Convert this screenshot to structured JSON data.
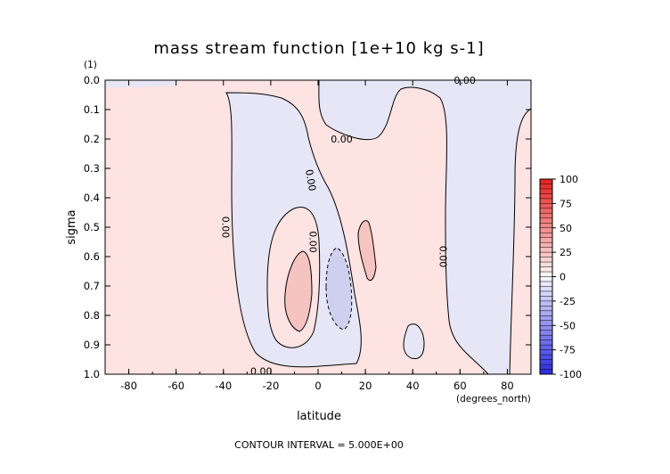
{
  "chart_data": {
    "type": "heatmap",
    "title": "mass stream function [1e+10 kg s-1]",
    "xlabel": "latitude",
    "ylabel": "sigma",
    "xunits": "(degrees_north)",
    "yunits": "(1)",
    "xlim": [
      -90,
      90
    ],
    "ylim": [
      0.0,
      1.0
    ],
    "y_inverted": true,
    "x_ticks": [
      "-80",
      "-60",
      "-40",
      "-20",
      "0",
      "20",
      "40",
      "60",
      "80"
    ],
    "y_ticks": [
      "0.0",
      "0.1",
      "0.2",
      "0.3",
      "0.4",
      "0.5",
      "0.6",
      "0.7",
      "0.8",
      "0.9",
      "1.0"
    ],
    "contour_labels": [
      "0.00",
      "0.00",
      "0.00",
      "0.00",
      "0.00",
      "0.00",
      "0.00"
    ],
    "colorbar": {
      "labels": [
        "100",
        "75",
        "50",
        "25",
        "0",
        "-25",
        "-50",
        "-75",
        "-100"
      ],
      "min": -100,
      "max": 100
    },
    "footer": "CONTOUR INTERVAL = 5.000E+00",
    "colors": {
      "positive_fill": "#fde3e1",
      "positive_strong": "#f6c4c0",
      "negative_fill": "#e6e6f7",
      "negative_strong": "#cfd0ef",
      "colorbar_max": "#e8201e",
      "colorbar_min": "#2a2ae0"
    }
  }
}
